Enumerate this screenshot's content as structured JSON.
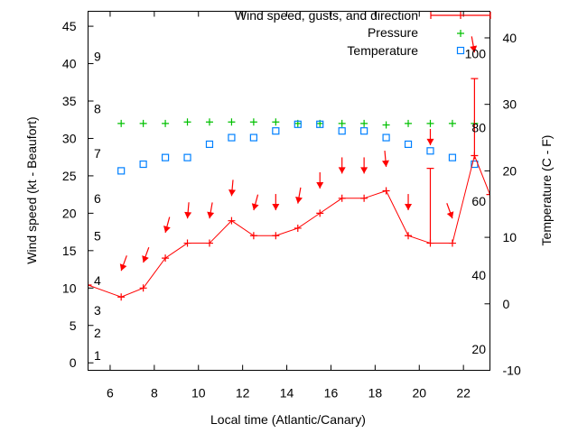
{
  "chart_data": {
    "type": "line",
    "xlabel": "Local time (Atlantic/Canary)",
    "ylabel": "Wind speed (kt - Beaufort)",
    "y2label": "Temperature (C - F)",
    "xlim": [
      5,
      23.2
    ],
    "ylim": [
      -1,
      47
    ],
    "y2lim": [
      -10,
      44
    ],
    "xticks": [
      "6",
      "8",
      "10",
      "12",
      "14",
      "16",
      "18",
      "20",
      "22"
    ],
    "yticks": [
      "0",
      "5",
      "10",
      "15",
      "20",
      "25",
      "30",
      "35",
      "40",
      "45"
    ],
    "y2ticks": [
      "-10",
      "0",
      "10",
      "20",
      "30",
      "40"
    ],
    "beaufort_labels": [
      {
        "label": "1",
        "kt": 1
      },
      {
        "label": "2",
        "kt": 4
      },
      {
        "label": "3",
        "kt": 7
      },
      {
        "label": "4",
        "kt": 11
      },
      {
        "label": "5",
        "kt": 17
      },
      {
        "label": "6",
        "kt": 22
      },
      {
        "label": "7",
        "kt": 28
      },
      {
        "label": "8",
        "kt": 34
      },
      {
        "label": "9",
        "kt": 41
      }
    ],
    "fahrenheit_labels": [
      "20",
      "40",
      "60",
      "80",
      "100"
    ],
    "legend": [
      "Wind speed, gusts, and direction",
      "Pressure",
      "Temperature"
    ],
    "legend_position": "top-right",
    "colors": {
      "wind": "#ff0000",
      "pressure": "#00c000",
      "temperature": "#0080ff"
    },
    "wind": {
      "x": [
        5,
        6.5,
        7.5,
        8.5,
        9.5,
        10.5,
        11.5,
        12.5,
        13.5,
        14.5,
        15.5,
        16.5,
        17.5,
        18.5,
        19.5,
        20.5,
        21.5,
        22.5,
        23.2
      ],
      "speed_kt": [
        10.4,
        8.8,
        10,
        14,
        16,
        16,
        19,
        17,
        17,
        18,
        20,
        22,
        22,
        23,
        17,
        16,
        16,
        27.7,
        22.5
      ]
    },
    "gusts": [
      {
        "x": 20.5,
        "low": 16,
        "high": 26
      },
      {
        "x": 22.5,
        "low": 27.7,
        "high": 38
      }
    ],
    "direction": {
      "x": [
        6.5,
        7.5,
        8.5,
        9.5,
        10.5,
        11.5,
        12.5,
        13.5,
        14.5,
        15.5,
        16.5,
        17.5,
        18.5,
        19.5,
        20.5,
        21.5,
        22.5
      ],
      "level_kt": [
        12.3,
        13.4,
        17.4,
        19.3,
        19.3,
        22.3,
        20.4,
        20.4,
        21.3,
        23.3,
        25.3,
        25.3,
        26.2,
        20.4,
        29.1,
        19.3,
        41.5
      ],
      "from_deg": [
        20,
        20,
        15,
        5,
        10,
        5,
        15,
        0,
        10,
        0,
        0,
        0,
        355,
        0,
        0,
        340,
        350
      ]
    },
    "pressure": {
      "x": [
        6.5,
        7.5,
        8.5,
        9.5,
        10.5,
        11.5,
        12.5,
        13.5,
        14.5,
        15.5,
        16.5,
        17.5,
        18.5,
        19.5,
        20.5,
        21.5,
        22.5
      ],
      "plotted_kt": [
        32,
        32,
        32,
        32.2,
        32.2,
        32.2,
        32.2,
        32.2,
        32,
        32,
        32,
        32,
        31.8,
        32,
        32,
        32,
        32
      ]
    },
    "temperature_c": {
      "x": [
        6.5,
        7.5,
        8.5,
        9.5,
        10.5,
        11.5,
        12.5,
        13.5,
        14.5,
        15.5,
        16.5,
        17.5,
        18.5,
        19.5,
        20.5,
        21.5,
        22.5
      ],
      "values": [
        20,
        21,
        22,
        22,
        24,
        25,
        25,
        26,
        27,
        27,
        26,
        26,
        25,
        24,
        23,
        22,
        21
      ]
    }
  }
}
